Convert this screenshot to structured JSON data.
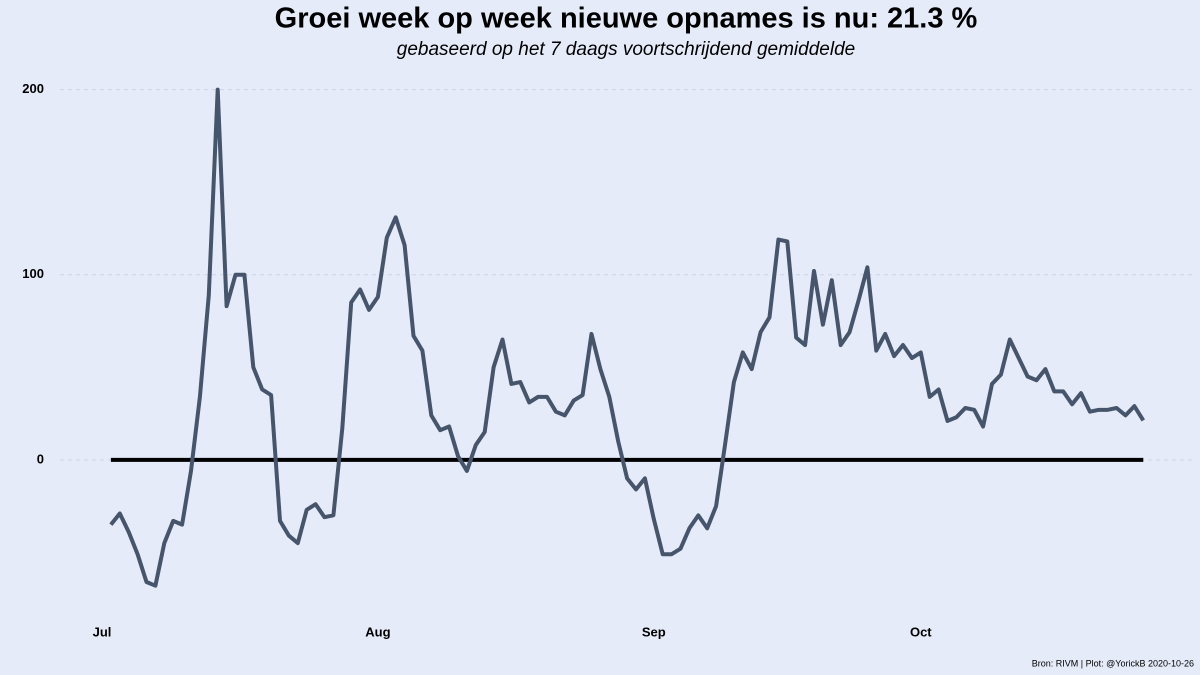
{
  "chart_data": {
    "type": "line",
    "title": "Groei week op week nieuwe opnames is nu:  21.3 %",
    "subtitle": "gebaseerd op het 7 daags voortschrijdend gemiddelde",
    "caption": "Bron: RIVM | Plot: @YorickB  2020-10-26",
    "x": [
      1,
      2,
      3,
      4,
      5,
      6,
      7,
      8,
      9,
      10,
      11,
      12,
      13,
      14,
      15,
      16,
      17,
      18,
      19,
      20,
      21,
      22,
      23,
      24,
      25,
      26,
      27,
      28,
      29,
      30,
      31,
      32,
      33,
      34,
      35,
      36,
      37,
      38,
      39,
      40,
      41,
      42,
      43,
      44,
      45,
      46,
      47,
      48,
      49,
      50,
      51,
      52,
      53,
      54,
      55,
      56,
      57,
      58,
      59,
      60,
      61,
      62,
      63,
      64,
      65,
      66,
      67,
      68,
      69,
      70,
      71,
      72,
      73,
      74,
      75,
      76,
      77,
      78,
      79,
      80,
      81,
      82,
      83,
      84,
      85,
      86,
      87,
      88,
      89,
      90,
      91,
      92,
      93,
      94,
      95,
      96,
      97,
      98,
      99,
      100,
      101,
      102,
      103,
      104,
      105,
      106,
      107,
      108,
      109,
      110,
      111,
      112,
      113,
      114,
      115,
      116,
      117
    ],
    "series": [
      {
        "color": "#46556b",
        "values": [
          -35,
          -29,
          -39,
          -51,
          -66,
          -68,
          -45,
          -33,
          -35,
          -6,
          34,
          89,
          200,
          83,
          100,
          100,
          50,
          38,
          35,
          -33,
          -41,
          -45,
          -27,
          -24,
          -31,
          -30,
          17,
          85,
          92,
          81,
          88,
          120,
          131,
          116,
          67,
          59,
          24,
          16,
          18,
          2,
          -6,
          8,
          15,
          50,
          65,
          41,
          42,
          31,
          34,
          34,
          26,
          24,
          32,
          35,
          68,
          49,
          34,
          10,
          -10,
          -16,
          -10,
          -32,
          -51,
          -51,
          -48,
          -37,
          -30,
          -37,
          -25,
          8,
          42,
          58,
          49,
          69,
          77,
          119,
          118,
          66,
          62,
          102,
          73,
          97,
          62,
          69,
          86,
          104,
          59,
          68,
          56,
          62,
          55,
          58,
          34,
          38,
          21,
          23,
          28,
          27,
          18,
          41,
          46,
          65,
          55,
          45,
          43,
          49,
          37,
          37,
          30,
          36,
          26,
          27,
          27,
          28,
          24,
          29,
          21.3
        ]
      }
    ],
    "xlim": [
      0,
      120
    ],
    "xticks": [
      {
        "value": 0,
        "label": "Jul"
      },
      {
        "value": 31,
        "label": "Aug"
      },
      {
        "value": 62,
        "label": "Sep"
      },
      {
        "value": 92,
        "label": "Oct"
      }
    ],
    "ylim": [
      -86,
      216
    ],
    "yticks": [
      0,
      100,
      200
    ],
    "hline": 0,
    "grid": true
  }
}
